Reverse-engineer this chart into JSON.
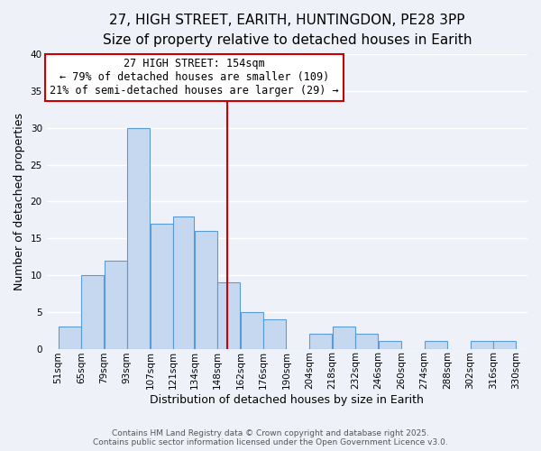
{
  "title": "27, HIGH STREET, EARITH, HUNTINGDON, PE28 3PP",
  "subtitle": "Size of property relative to detached houses in Earith",
  "xlabel": "Distribution of detached houses by size in Earith",
  "ylabel": "Number of detached properties",
  "bin_edges": [
    51,
    65,
    79,
    93,
    107,
    121,
    134,
    148,
    162,
    176,
    190,
    204,
    218,
    232,
    246,
    260,
    274,
    288,
    302,
    316,
    330
  ],
  "bar_heights": [
    3,
    10,
    12,
    30,
    17,
    18,
    16,
    9,
    5,
    4,
    0,
    2,
    3,
    2,
    1,
    0,
    1,
    0,
    1,
    1
  ],
  "bar_color": "#c5d8f0",
  "bar_edge_color": "#5b9bd5",
  "vline_x": 154,
  "vline_color": "#cc0000",
  "annotation_title": "27 HIGH STREET: 154sqm",
  "annotation_line1": "← 79% of detached houses are smaller (109)",
  "annotation_line2": "21% of semi-detached houses are larger (29) →",
  "annotation_box_color": "#ffffff",
  "annotation_box_edge": "#cc0000",
  "ylim": [
    0,
    40
  ],
  "yticks": [
    0,
    5,
    10,
    15,
    20,
    25,
    30,
    35,
    40
  ],
  "background_color": "#eef2f8",
  "grid_color": "#ffffff",
  "footer_line1": "Contains HM Land Registry data © Crown copyright and database right 2025.",
  "footer_line2": "Contains public sector information licensed under the Open Government Licence v3.0.",
  "title_fontsize": 11,
  "subtitle_fontsize": 9.5,
  "xlabel_fontsize": 9,
  "ylabel_fontsize": 9,
  "tick_fontsize": 7.5,
  "annotation_fontsize": 8.5,
  "footer_fontsize": 6.5
}
